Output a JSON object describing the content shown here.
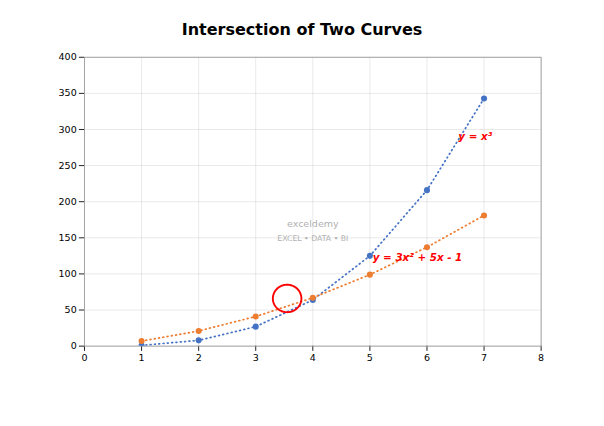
{
  "chart_data": {
    "type": "line",
    "title": "Intersection of Two Curves",
    "x": [
      1,
      2,
      3,
      4,
      5,
      6,
      7
    ],
    "series": [
      {
        "color": "#4472C4",
        "marker": "o",
        "line_style": "dotted",
        "values": [
          1,
          8,
          27,
          64,
          125,
          216,
          343
        ]
      },
      {
        "color": "#ED7D31",
        "marker": "o",
        "line_style": "dotted",
        "values": [
          7,
          21,
          41,
          67,
          99,
          137,
          181
        ]
      }
    ],
    "xlim": [
      0,
      8
    ],
    "ylim": [
      0,
      400
    ],
    "xticks": [
      0,
      1,
      2,
      3,
      4,
      5,
      6,
      7,
      8
    ],
    "yticks": [
      0,
      50,
      100,
      150,
      200,
      250,
      300,
      350,
      400
    ],
    "grid": true,
    "annotations": [
      {
        "text": "y = x³",
        "x": 6.55,
        "y": 285,
        "color": "#FF0000"
      },
      {
        "text": "y = 3x² + 5x - 1",
        "x": 5.05,
        "y": 118,
        "color": "#FF0000"
      }
    ],
    "ellipse": {
      "x": 3.55,
      "y": 66,
      "width": 0.5,
      "height": 38,
      "color": "red"
    },
    "watermark": [
      "exceldemy",
      "EXCEL • DATA • BI"
    ]
  }
}
